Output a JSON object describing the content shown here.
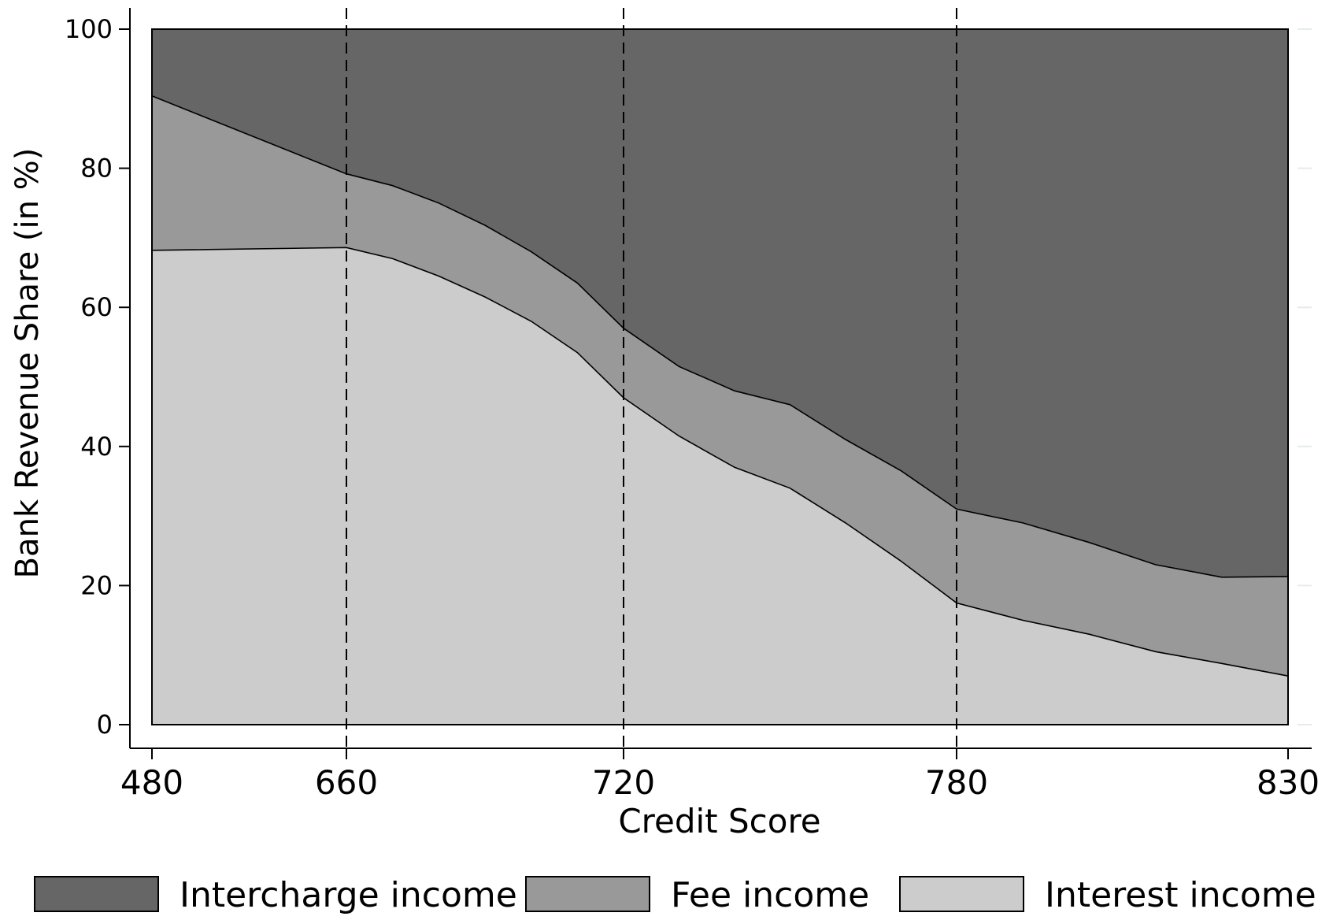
{
  "chart_data": {
    "type": "area",
    "stacked": true,
    "xlabel": "Credit Score",
    "ylabel": "Bank Revenue Share (in %)",
    "ylim": [
      0,
      100
    ],
    "yticks": [
      0,
      20,
      40,
      60,
      80,
      100
    ],
    "xticks": [
      "480",
      "660",
      "720",
      "780",
      "830"
    ],
    "x_scale_note": "broken axis: 480 to 660 compressed",
    "vertical_dashed_lines_at": [
      660,
      720,
      780
    ],
    "grid": false,
    "legend_position": "bottom",
    "x": [
      480,
      660,
      670,
      680,
      690,
      700,
      710,
      720,
      730,
      740,
      750,
      760,
      770,
      780,
      790,
      800,
      810,
      820,
      830
    ],
    "series": [
      {
        "name": "Interest income",
        "color": "#cccccc",
        "values": [
          68.2,
          68.6,
          67.0,
          64.5,
          61.5,
          58.0,
          53.5,
          47.0,
          41.5,
          37.0,
          34.0,
          29.0,
          23.5,
          17.5,
          15.0,
          13.0,
          10.5,
          8.8,
          7.0
        ]
      },
      {
        "name": "Fee income",
        "color": "#999999",
        "values": [
          22.2,
          10.6,
          10.5,
          10.5,
          10.3,
          10.0,
          10.0,
          10.0,
          10.0,
          11.0,
          12.0,
          12.0,
          13.0,
          13.5,
          14.0,
          13.2,
          12.5,
          12.4,
          14.3
        ]
      },
      {
        "name": "Intercharge income",
        "color": "#666666",
        "values": [
          9.6,
          20.8,
          22.5,
          25.0,
          28.2,
          32.0,
          36.5,
          43.0,
          48.5,
          52.0,
          54.0,
          59.0,
          63.5,
          69.0,
          71.0,
          73.8,
          77.0,
          78.8,
          78.7
        ]
      }
    ],
    "legend": [
      "Intercharge income",
      "Fee income",
      "Interest income"
    ]
  }
}
